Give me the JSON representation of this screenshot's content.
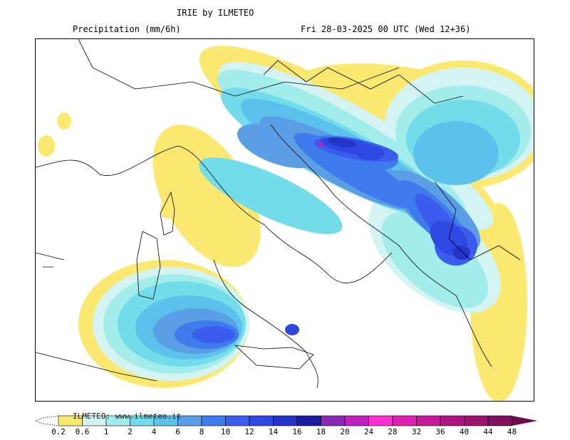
{
  "header": {
    "title": "IRIE by ILMETEO",
    "variable": "Precipitation (mm/6h)",
    "valid_time": "Fri 28-03-2025 00 UTC (Wed 12+36)"
  },
  "legend": {
    "credit": "ILMETEO: www.ilmeteo.it",
    "ticks": [
      "0.2",
      "0.6",
      "1",
      "2",
      "4",
      "6",
      "8",
      "10",
      "12",
      "14",
      "16",
      "18",
      "20",
      "24",
      "28",
      "32",
      "36",
      "40",
      "44",
      "48"
    ],
    "colors": [
      "#fbe870",
      "#d4f4f4",
      "#a2ecec",
      "#72dcea",
      "#5cc2ec",
      "#5a9ee6",
      "#3e7cee",
      "#3c5cee",
      "#2e48e2",
      "#2434c8",
      "#1a1aa2",
      "#8a28b4",
      "#c020c0",
      "#ff30d2",
      "#e020b0",
      "#c8189a",
      "#b01484",
      "#9a1470",
      "#801060"
    ],
    "overflow_color": "#6a0c4c"
  }
}
